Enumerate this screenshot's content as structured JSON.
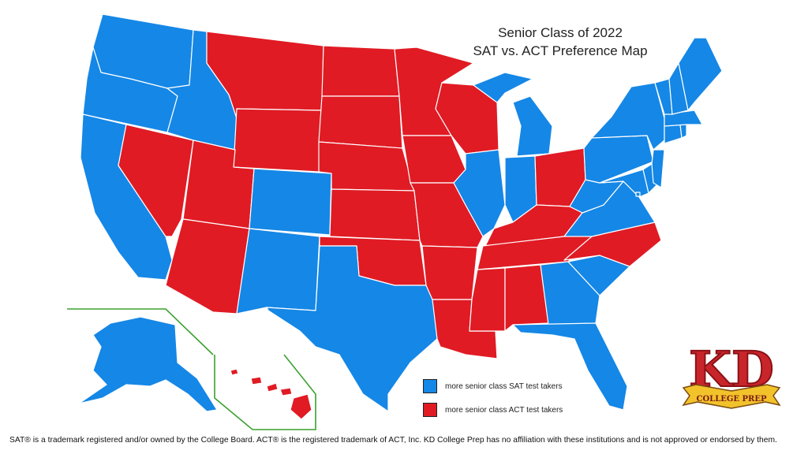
{
  "title": {
    "line1": "Senior Class of 2022",
    "line2": "SAT vs. ACT Preference Map"
  },
  "legend": {
    "sat": {
      "label": "more senior class SAT test takers",
      "color": "#1587e6"
    },
    "act": {
      "label": "more senior class ACT test takers",
      "color": "#e01b24"
    }
  },
  "footnote": "SAT® is a trademark registered and/or owned by the College Board. ACT® is the registered trademark of ACT, Inc. KD College Prep has no affiliation with these institutions and is not approved or endorsed by them.",
  "logo": {
    "text_top": "KD",
    "text_banner": "COLLEGE PREP"
  },
  "states": {
    "SAT": [
      "Washington",
      "Oregon",
      "California",
      "Idaho",
      "Colorado",
      "New Mexico",
      "Texas",
      "Alaska",
      "Illinois",
      "Indiana",
      "Michigan",
      "Georgia",
      "South Carolina",
      "Florida",
      "Virginia",
      "West Virginia",
      "Maryland",
      "Delaware",
      "New Jersey",
      "Pennsylvania",
      "New York",
      "Connecticut",
      "Rhode Island",
      "Massachusetts",
      "Vermont",
      "New Hampshire",
      "Maine",
      "District of Columbia"
    ],
    "ACT": [
      "Montana",
      "Wyoming",
      "North Dakota",
      "South Dakota",
      "Nebraska",
      "Kansas",
      "Oklahoma",
      "Minnesota",
      "Iowa",
      "Missouri",
      "Arkansas",
      "Louisiana",
      "Wisconsin",
      "Ohio",
      "Kentucky",
      "Tennessee",
      "Mississippi",
      "Alabama",
      "North Carolina",
      "Nevada",
      "Utah",
      "Arizona",
      "Hawaii"
    ]
  }
}
